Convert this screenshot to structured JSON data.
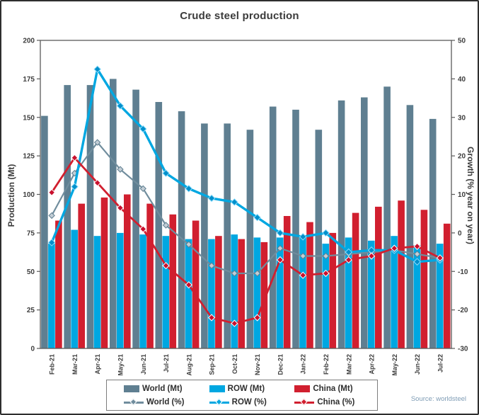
{
  "title": "Crude steel production",
  "source": "Source: worldsteel",
  "axes": {
    "left_title": "Production (Mt)",
    "right_title": "Growth (% year on year)"
  },
  "legend": {
    "items": [
      {
        "label": "World (Mt)",
        "type": "bar",
        "color": "#5f7f91"
      },
      {
        "label": "ROW (Mt)",
        "type": "bar",
        "color": "#00a7e1"
      },
      {
        "label": "China (Mt)",
        "type": "bar",
        "color": "#d11f2f"
      },
      {
        "label": "World (%)",
        "type": "line",
        "color": "#708d9d"
      },
      {
        "label": "ROW (%)",
        "type": "line",
        "color": "#00a7e1"
      },
      {
        "label": "China (%)",
        "type": "line",
        "color": "#d11f2f"
      }
    ]
  },
  "colors": {
    "world_bar": "#5f7f91",
    "row_bar": "#00a7e1",
    "china_bar": "#d11f2f",
    "world_line": "#708d9d",
    "row_line": "#00a7e1",
    "china_line": "#d11f2f",
    "frame": "#5a5a5a",
    "tick_text": "#3d3d3d"
  },
  "chart_data": {
    "type": "combo-bar-line",
    "title": "Crude steel production",
    "categories": [
      "Feb-21",
      "Mar-21",
      "Apr-21",
      "May-21",
      "Jun-21",
      "Jul-21",
      "Aug-21",
      "Sep-21",
      "Oct-21",
      "Nov-21",
      "Dec-21",
      "Jan-22",
      "Feb-22",
      "Mar-22",
      "Apr-22",
      "May-22",
      "Jun-22",
      "Jul-22"
    ],
    "left_axis": {
      "label": "Production (Mt)",
      "min": 0,
      "max": 200,
      "ticks": [
        0,
        25,
        50,
        75,
        100,
        125,
        150,
        175,
        200
      ]
    },
    "right_axis": {
      "label": "Growth (% year on year)",
      "min": -30,
      "max": 50,
      "ticks": [
        50,
        40,
        30,
        20,
        10,
        0,
        -10,
        -20,
        -30
      ]
    },
    "grid": false,
    "legend_position": "bottom",
    "bar_series": [
      {
        "name": "World (Mt)",
        "color": "#5f7f91",
        "values": [
          151,
          171,
          171,
          175,
          168,
          160,
          154,
          146,
          146,
          142,
          157,
          155,
          142,
          161,
          163,
          170,
          158,
          149
        ]
      },
      {
        "name": "ROW (Mt)",
        "color": "#00a7e1",
        "values": [
          68,
          77,
          73,
          75,
          74,
          73,
          71,
          71,
          74,
          72,
          72,
          73,
          68,
          72,
          70,
          73,
          67,
          68
        ]
      },
      {
        "name": "China (Mt)",
        "color": "#d11f2f",
        "values": [
          83,
          94,
          98,
          100,
          94,
          87,
          83,
          73,
          71,
          69,
          86,
          82,
          75,
          88,
          92,
          96,
          90,
          81
        ]
      }
    ],
    "line_series": [
      {
        "name": "World (%)",
        "axis": "right",
        "color": "#708d9d",
        "width": 2.2,
        "marker_fill": "#c2cdd5",
        "marker_stroke": "#5f7f91",
        "marker_size": 4,
        "values": [
          4.5,
          15.5,
          23.5,
          16.5,
          11.5,
          2,
          -3,
          -8.5,
          -10.5,
          -10.5,
          -4,
          -6,
          -6,
          -5.5,
          -5,
          -4.5,
          -5.5,
          -6.5
        ]
      },
      {
        "name": "ROW (%)",
        "axis": "right",
        "color": "#00a7e1",
        "width": 3.4,
        "marker_fill": "#0090cc",
        "marker_stroke": "#8edbfa",
        "marker_size": 4.6,
        "values": [
          -2.5,
          12,
          42.5,
          33,
          27,
          15.5,
          11.5,
          9,
          8,
          4,
          0,
          -1,
          0,
          -5,
          -4.5,
          -4.5,
          -7.5,
          -7
        ]
      },
      {
        "name": "China (%)",
        "axis": "right",
        "color": "#d11f2f",
        "width": 2.8,
        "marker_fill": "#c8102e",
        "marker_stroke": "#ffffff",
        "marker_size": 4.4,
        "values": [
          10.5,
          19.5,
          13,
          6.5,
          1,
          -8.5,
          -13.5,
          -22,
          -23.5,
          -22,
          -7,
          -11,
          -10.5,
          -7,
          -6,
          -4,
          -3.5,
          -6.5
        ]
      }
    ]
  }
}
